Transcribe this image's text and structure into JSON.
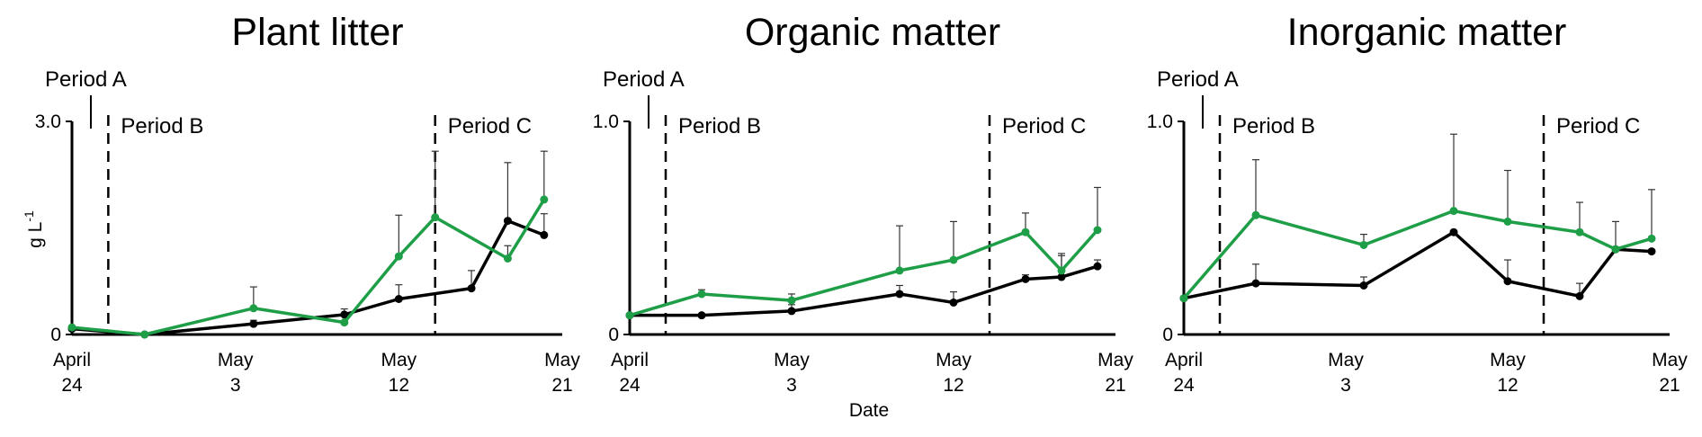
{
  "figure": {
    "xlabel": "Date",
    "ylabel": "g L",
    "ylabel_superscript": "-1"
  },
  "colors": {
    "black_series": "#000000",
    "green_series": "#1f9e48",
    "axis": "#000000",
    "error_bar": "#333333"
  },
  "chart_data": [
    {
      "type": "line",
      "title": "Plant litter",
      "ylim": [
        0,
        3.0
      ],
      "yticks": [
        "0",
        "3.0"
      ],
      "xlim": [
        "2018-04-24",
        "2018-05-21"
      ],
      "xticks": [
        {
          "value": "2018-04-24",
          "lines": [
            "April",
            "24"
          ]
        },
        {
          "value": "2018-05-03",
          "lines": [
            "May",
            "3"
          ]
        },
        {
          "value": "2018-05-12",
          "lines": [
            "May",
            "12"
          ]
        },
        {
          "value": "2018-05-21",
          "lines": [
            "May",
            "21"
          ]
        }
      ],
      "periods": [
        {
          "label": "Period A",
          "start": "2018-04-24",
          "style": "solid"
        },
        {
          "label": "Period B",
          "start": "2018-04-26",
          "style": "dashed"
        },
        {
          "label": "Period C",
          "start": "2018-05-14",
          "style": "dashed"
        }
      ],
      "series": [
        {
          "color": "black",
          "x": [
            "2018-04-24",
            "2018-04-28",
            "2018-05-04",
            "2018-05-09",
            "2018-05-12",
            "2018-05-16",
            "2018-05-18",
            "2018-05-20"
          ],
          "y": [
            0.08,
            0.0,
            0.15,
            0.28,
            0.5,
            0.65,
            1.6,
            1.4
          ],
          "err": [
            0.0,
            0.0,
            0.05,
            0.08,
            0.2,
            0.25,
            0.82,
            0.3
          ]
        },
        {
          "color": "green",
          "x": [
            "2018-04-24",
            "2018-04-28",
            "2018-05-04",
            "2018-05-09",
            "2018-05-12",
            "2018-05-14",
            "2018-05-18",
            "2018-05-20"
          ],
          "y": [
            0.1,
            0.0,
            0.37,
            0.17,
            1.1,
            1.65,
            1.07,
            1.9
          ],
          "err": [
            0.0,
            0.0,
            0.3,
            0.0,
            0.58,
            0.93,
            0.18,
            0.68
          ]
        }
      ]
    },
    {
      "type": "line",
      "title": "Organic matter",
      "ylim": [
        0,
        1.0
      ],
      "yticks": [
        "0",
        "1.0"
      ],
      "xlim": [
        "2018-04-24",
        "2018-05-21"
      ],
      "xticks": [
        {
          "value": "2018-04-24",
          "lines": [
            "April",
            "24"
          ]
        },
        {
          "value": "2018-05-03",
          "lines": [
            "May",
            "3"
          ]
        },
        {
          "value": "2018-05-12",
          "lines": [
            "May",
            "12"
          ]
        },
        {
          "value": "2018-05-21",
          "lines": [
            "May",
            "21"
          ]
        }
      ],
      "periods": [
        {
          "label": "Period A",
          "start": "2018-04-25",
          "style": "solid"
        },
        {
          "label": "Period B",
          "start": "2018-04-26",
          "style": "dashed"
        },
        {
          "label": "Period C",
          "start": "2018-05-14",
          "style": "dashed"
        }
      ],
      "series": [
        {
          "color": "black",
          "x": [
            "2018-04-24",
            "2018-04-28",
            "2018-05-03",
            "2018-05-09",
            "2018-05-12",
            "2018-05-16",
            "2018-05-18",
            "2018-05-20"
          ],
          "y": [
            0.09,
            0.09,
            0.11,
            0.19,
            0.15,
            0.26,
            0.27,
            0.32
          ],
          "err": [
            0.0,
            0.0,
            0.03,
            0.04,
            0.05,
            0.02,
            0.11,
            0.03
          ]
        },
        {
          "color": "green",
          "x": [
            "2018-04-24",
            "2018-04-28",
            "2018-05-03",
            "2018-05-09",
            "2018-05-12",
            "2018-05-16",
            "2018-05-18",
            "2018-05-20"
          ],
          "y": [
            0.09,
            0.19,
            0.16,
            0.3,
            0.35,
            0.48,
            0.3,
            0.49
          ],
          "err": [
            0.0,
            0.02,
            0.03,
            0.21,
            0.18,
            0.09,
            0.07,
            0.2
          ]
        }
      ]
    },
    {
      "type": "line",
      "title": "Inorganic matter",
      "ylim": [
        0,
        1.0
      ],
      "yticks": [
        "0",
        "1.0"
      ],
      "xlim": [
        "2018-04-24",
        "2018-05-21"
      ],
      "xticks": [
        {
          "value": "2018-04-24",
          "lines": [
            "April",
            "24"
          ]
        },
        {
          "value": "2018-05-03",
          "lines": [
            "May",
            "3"
          ]
        },
        {
          "value": "2018-05-12",
          "lines": [
            "May",
            "12"
          ]
        },
        {
          "value": "2018-05-21",
          "lines": [
            "May",
            "21"
          ]
        }
      ],
      "periods": [
        {
          "label": "Period A",
          "start": "2018-04-25",
          "style": "solid"
        },
        {
          "label": "Period B",
          "start": "2018-04-26",
          "style": "dashed"
        },
        {
          "label": "Period C",
          "start": "2018-05-14",
          "style": "dashed"
        }
      ],
      "series": [
        {
          "color": "black",
          "x": [
            "2018-04-24",
            "2018-04-28",
            "2018-05-04",
            "2018-05-09",
            "2018-05-12",
            "2018-05-16",
            "2018-05-18",
            "2018-05-20"
          ],
          "y": [
            0.17,
            0.24,
            0.23,
            0.48,
            0.25,
            0.18,
            0.4,
            0.39
          ],
          "err": [
            0.0,
            0.09,
            0.04,
            0.0,
            0.1,
            0.06,
            0.13,
            0.0
          ]
        },
        {
          "color": "green",
          "x": [
            "2018-04-24",
            "2018-04-28",
            "2018-05-04",
            "2018-05-09",
            "2018-05-12",
            "2018-05-16",
            "2018-05-18",
            "2018-05-20"
          ],
          "y": [
            0.17,
            0.56,
            0.42,
            0.58,
            0.53,
            0.48,
            0.4,
            0.45
          ],
          "err": [
            0.0,
            0.26,
            0.05,
            0.36,
            0.24,
            0.14,
            0.0,
            0.23
          ]
        }
      ]
    }
  ]
}
